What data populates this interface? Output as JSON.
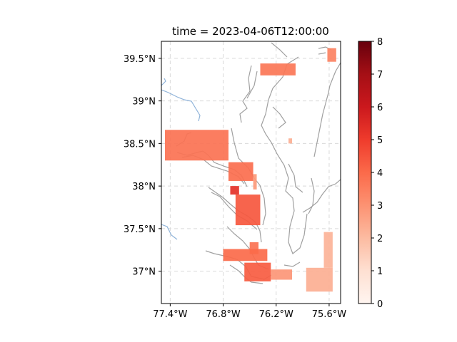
{
  "chart_data": {
    "type": "heatmap",
    "title": "time = 2023-04-06T12:00:00",
    "projection": "map (lat/lon)",
    "x_range_lon": [
      -77.5,
      -75.47
    ],
    "y_range_lat": [
      36.62,
      39.7
    ],
    "x_ticks": [
      {
        "value": -77.4,
        "label": "77.4°W"
      },
      {
        "value": -76.8,
        "label": "76.8°W"
      },
      {
        "value": -76.2,
        "label": "76.2°W"
      },
      {
        "value": -75.6,
        "label": "75.6°W"
      }
    ],
    "y_ticks": [
      {
        "value": 39.5,
        "label": "39.5°N"
      },
      {
        "value": 39.0,
        "label": "39°N"
      },
      {
        "value": 38.5,
        "label": "38.5°N"
      },
      {
        "value": 38.0,
        "label": "38°N"
      },
      {
        "value": 37.5,
        "label": "37.5°N"
      },
      {
        "value": 37.0,
        "label": "37°N"
      }
    ],
    "grid": true,
    "colorbar": {
      "cmap": "Reds",
      "range": [
        0,
        8
      ],
      "ticks": [
        {
          "value": 0,
          "label": "0"
        },
        {
          "value": 1,
          "label": "1"
        },
        {
          "value": 2,
          "label": "2"
        },
        {
          "value": 3,
          "label": "3"
        },
        {
          "value": 4,
          "label": "4"
        },
        {
          "value": 5,
          "label": "5"
        },
        {
          "value": 6,
          "label": "6"
        },
        {
          "value": 7,
          "label": "7"
        },
        {
          "value": 8,
          "label": "8"
        }
      ]
    },
    "cells": [
      {
        "lon": -75.62,
        "lat": 39.62,
        "lon2": -75.52,
        "lat2": 39.46,
        "value": 3.4
      },
      {
        "lon": -76.38,
        "lat": 39.44,
        "lon2": -75.98,
        "lat2": 39.3,
        "value": 3.7
      },
      {
        "lon": -77.46,
        "lat": 38.66,
        "lon2": -76.74,
        "lat2": 38.3,
        "value": 3.8
      },
      {
        "lon": -76.74,
        "lat": 38.28,
        "lon2": -76.46,
        "lat2": 38.06,
        "value": 3.9
      },
      {
        "lon": -76.46,
        "lat": 38.14,
        "lon2": -76.42,
        "lat2": 37.96,
        "value": 2.8
      },
      {
        "lon": -76.72,
        "lat": 38.0,
        "lon2": -76.62,
        "lat2": 37.9,
        "value": 5.3
      },
      {
        "lon": -76.66,
        "lat": 37.9,
        "lon2": -76.38,
        "lat2": 37.54,
        "value": 4.4
      },
      {
        "lon": -76.5,
        "lat": 37.34,
        "lon2": -76.4,
        "lat2": 37.2,
        "value": 3.8
      },
      {
        "lon": -76.8,
        "lat": 37.26,
        "lon2": -76.3,
        "lat2": 37.12,
        "value": 4.0
      },
      {
        "lon": -76.56,
        "lat": 37.1,
        "lon2": -76.26,
        "lat2": 36.88,
        "value": 4.3
      },
      {
        "lon": -76.26,
        "lat": 37.02,
        "lon2": -76.02,
        "lat2": 36.9,
        "value": 2.9
      },
      {
        "lon": -75.86,
        "lat": 37.04,
        "lon2": -75.56,
        "lat2": 36.76,
        "value": 2.3
      },
      {
        "lon": -75.66,
        "lat": 37.46,
        "lon2": -75.56,
        "lat2": 37.04,
        "value": 2.2
      },
      {
        "lon": -76.06,
        "lat": 38.56,
        "lon2": -76.02,
        "lat2": 38.5,
        "value": 2.3
      }
    ]
  }
}
